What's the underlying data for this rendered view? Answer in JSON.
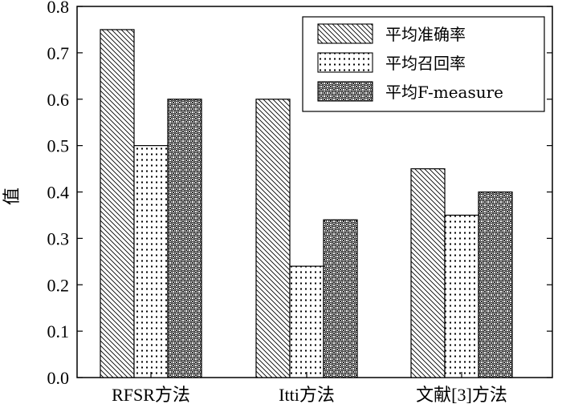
{
  "chart_data": {
    "type": "bar",
    "title": "",
    "xlabel": "",
    "ylabel": "值",
    "ylim": [
      0,
      0.8
    ],
    "yticks": [
      "0.0",
      "0.1",
      "0.2",
      "0.3",
      "0.4",
      "0.5",
      "0.6",
      "0.7",
      "0.8"
    ],
    "categories": [
      "RFSR方法",
      "Itti方法",
      "文献[3]方法"
    ],
    "series": [
      {
        "name": "平均准确率",
        "values": [
          0.75,
          0.6,
          0.45
        ],
        "pattern": "diagonal-hatch"
      },
      {
        "name": "平均召回率",
        "values": [
          0.5,
          0.24,
          0.35
        ],
        "pattern": "dots"
      },
      {
        "name": "平均F-measure",
        "values": [
          0.6,
          0.34,
          0.4
        ],
        "pattern": "crosshatch-circles"
      }
    ],
    "grid": false,
    "legend_position": "top-right",
    "colors": {
      "stroke": "#000000",
      "fill": "#ffffff"
    }
  }
}
